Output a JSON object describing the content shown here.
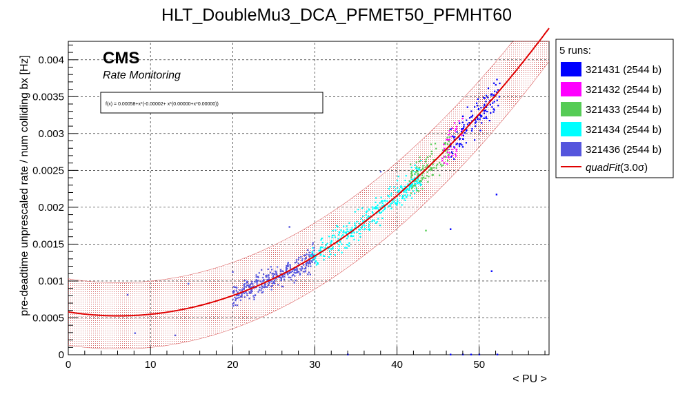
{
  "chart_data": {
    "type": "scatter",
    "title": "HLT_DoubleMu3_DCA_PFMET50_PFMHT60",
    "xlabel": "< PU >",
    "ylabel": "pre-deadtime unprescaled rate / num colliding bx [Hz]",
    "xlim": [
      0,
      58.5
    ],
    "ylim": [
      0,
      0.00425
    ],
    "x_ticks": [
      0,
      10,
      20,
      30,
      40,
      50
    ],
    "x_tick_labels": [
      "0",
      "10",
      "20",
      "30",
      "40",
      "50"
    ],
    "y_ticks": [
      0,
      0.0005,
      0.001,
      0.0015,
      0.002,
      0.0025,
      0.003,
      0.0035,
      0.004
    ],
    "y_tick_labels": [
      "0",
      "0.0005",
      "0.001",
      "0.0015",
      "0.002",
      "0.0025",
      "0.003",
      "0.0035",
      "0.004"
    ],
    "grid": true,
    "cms_label": "CMS",
    "cms_sublabel": "Rate Monitoring",
    "fit_formula": "f(x) = 0.00058+x*(-0.00002+ x*(0.00000+x*0.00000))",
    "fit": {
      "name": "quadFit",
      "sigma_label": "(3.0σ)",
      "coeffs": [
        0.00058,
        -1.73e-05,
        1.42e-06,
        0.0
      ],
      "band_halfwidth": 0.00045,
      "color": "#e00000"
    },
    "legend_title": "5 runs:",
    "legend_position": "right",
    "series": [
      {
        "name": "321431 (2544 b)",
        "color": "#0000ff",
        "x_range": [
          46.5,
          52.5
        ],
        "n_points": 120
      },
      {
        "name": "321432 (2544 b)",
        "color": "#ff00ff",
        "x_range": [
          45.5,
          48
        ],
        "n_points": 40
      },
      {
        "name": "321433 (2544 b)",
        "color": "#55cc55",
        "x_range": [
          41.5,
          46.5
        ],
        "n_points": 110
      },
      {
        "name": "321434 (2544 b)",
        "color": "#00ffff",
        "x_range": [
          29.5,
          43
        ],
        "n_points": 340
      },
      {
        "name": "321436 (2544 b)",
        "color": "#5555dd",
        "x_range": [
          20,
          30
        ],
        "n_points": 320
      }
    ],
    "outliers": [
      {
        "x": 7.2,
        "y": 0.00081,
        "color": "#5555dd"
      },
      {
        "x": 8.1,
        "y": 0.00029,
        "color": "#5555dd"
      },
      {
        "x": 13.0,
        "y": 0.00026,
        "color": "#5555dd"
      },
      {
        "x": 14.6,
        "y": 0.00096,
        "color": "#5555dd"
      },
      {
        "x": 20.0,
        "y": 0.00112,
        "color": "#5555dd"
      },
      {
        "x": 26.9,
        "y": 0.00173,
        "color": "#5555dd"
      },
      {
        "x": 38.0,
        "y": 0.00248,
        "color": "#5555dd"
      },
      {
        "x": 43.5,
        "y": 0.00168,
        "color": "#55cc55"
      },
      {
        "x": 46.5,
        "y": 0.0017,
        "color": "#0000ff"
      },
      {
        "x": 51.5,
        "y": 0.00113,
        "color": "#0000ff"
      },
      {
        "x": 52.1,
        "y": 0.00217,
        "color": "#0000ff"
      },
      {
        "x": 48.0,
        "y": 0.00323,
        "color": "#0000ff"
      },
      {
        "x": 49.5,
        "y": 0.00318,
        "color": "#0000ff"
      },
      {
        "x": 34.0,
        "y": 0.0,
        "color": "#0000ff"
      },
      {
        "x": 46.5,
        "y": 0.0,
        "color": "#0000ff"
      },
      {
        "x": 48.0,
        "y": 0.0,
        "color": "#0000ff"
      },
      {
        "x": 49.0,
        "y": 0.0,
        "color": "#0000ff"
      },
      {
        "x": 50.0,
        "y": 0.0,
        "color": "#0000ff"
      },
      {
        "x": 52.2,
        "y": 0.0,
        "color": "#0000ff"
      }
    ]
  }
}
